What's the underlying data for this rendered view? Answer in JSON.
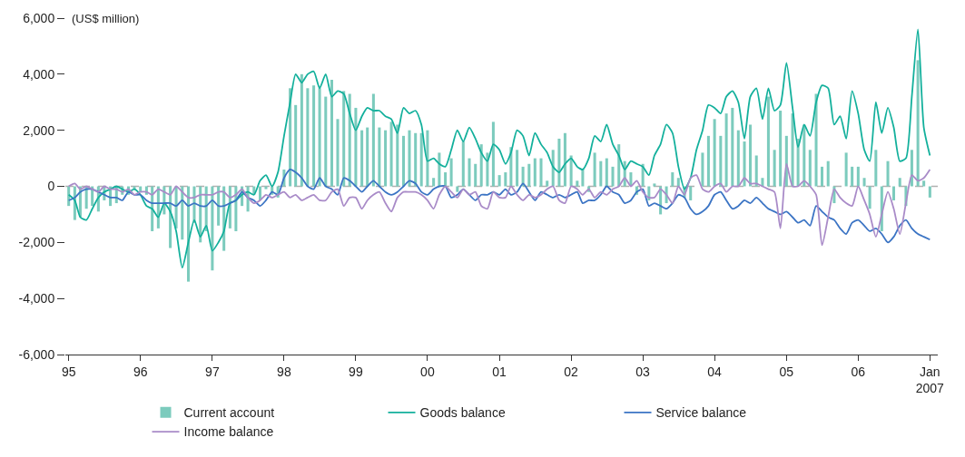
{
  "chart_data": {
    "type": "line",
    "ylabel": "(US$ million)",
    "x": [
      "1995-01",
      "1995-02",
      "1995-03",
      "1995-04",
      "1995-05",
      "1995-06",
      "1995-07",
      "1995-08",
      "1995-09",
      "1995-10",
      "1995-11",
      "1995-12",
      "1996-01",
      "1996-02",
      "1996-03",
      "1996-04",
      "1996-05",
      "1996-06",
      "1996-07",
      "1996-08",
      "1996-09",
      "1996-10",
      "1996-11",
      "1996-12",
      "1997-01",
      "1997-02",
      "1997-03",
      "1997-04",
      "1997-05",
      "1997-06",
      "1997-07",
      "1997-08",
      "1997-09",
      "1997-10",
      "1997-11",
      "1997-12",
      "1998-01",
      "1998-02",
      "1998-03",
      "1998-04",
      "1998-05",
      "1998-06",
      "1998-07",
      "1998-08",
      "1998-09",
      "1998-10",
      "1998-11",
      "1998-12",
      "1999-01",
      "1999-02",
      "1999-03",
      "1999-04",
      "1999-05",
      "1999-06",
      "1999-07",
      "1999-08",
      "1999-09",
      "1999-10",
      "1999-11",
      "1999-12",
      "2000-01",
      "2000-02",
      "2000-03",
      "2000-04",
      "2000-05",
      "2000-06",
      "2000-07",
      "2000-08",
      "2000-09",
      "2000-10",
      "2000-11",
      "2000-12",
      "2001-01",
      "2001-02",
      "2001-03",
      "2001-04",
      "2001-05",
      "2001-06",
      "2001-07",
      "2001-08",
      "2001-09",
      "2001-10",
      "2001-11",
      "2001-12",
      "2002-01",
      "2002-02",
      "2002-03",
      "2002-04",
      "2002-05",
      "2002-06",
      "2002-07",
      "2002-08",
      "2002-09",
      "2002-10",
      "2002-11",
      "2002-12",
      "2003-01",
      "2003-02",
      "2003-03",
      "2003-04",
      "2003-05",
      "2003-06",
      "2003-07",
      "2003-08",
      "2003-09",
      "2003-10",
      "2003-11",
      "2003-12",
      "2004-01",
      "2004-02",
      "2004-03",
      "2004-04",
      "2004-05",
      "2004-06",
      "2004-07",
      "2004-08",
      "2004-09",
      "2004-10",
      "2004-11",
      "2004-12",
      "2005-01",
      "2005-02",
      "2005-03",
      "2005-04",
      "2005-05",
      "2005-06",
      "2005-07",
      "2005-08",
      "2005-09",
      "2005-10",
      "2005-11",
      "2005-12",
      "2006-01",
      "2006-02",
      "2006-03",
      "2006-04",
      "2006-05",
      "2006-06",
      "2006-07",
      "2006-08",
      "2006-09",
      "2006-10",
      "2006-11",
      "2006-12",
      "2007-01"
    ],
    "xlim": [
      "1994-12-15",
      "2007-02-10"
    ],
    "xticks": [
      {
        "value": "1995-01-01",
        "label": "95"
      },
      {
        "value": "1996-01-01",
        "label": "96"
      },
      {
        "value": "1997-01-01",
        "label": "97"
      },
      {
        "value": "1998-01-01",
        "label": "98"
      },
      {
        "value": "1999-01-01",
        "label": "99"
      },
      {
        "value": "2000-01-01",
        "label": "00"
      },
      {
        "value": "2001-01-01",
        "label": "01"
      },
      {
        "value": "2002-01-01",
        "label": "02"
      },
      {
        "value": "2003-01-01",
        "label": "03"
      },
      {
        "value": "2004-01-01",
        "label": "04"
      },
      {
        "value": "2005-01-01",
        "label": "05"
      },
      {
        "value": "2006-01-01",
        "label": "06"
      },
      {
        "value": "2007-01-01",
        "label": "Jan\n2007"
      }
    ],
    "ylim": [
      -6000,
      6000
    ],
    "yticks": [
      {
        "value": -6000,
        "label": "-6,000"
      },
      {
        "value": -4000,
        "label": "-4,000"
      },
      {
        "value": -2000,
        "label": "-2,000"
      },
      0,
      {
        "value": 2000,
        "label": "2,000"
      },
      {
        "value": 4000,
        "label": "4,000"
      },
      {
        "value": 6000,
        "label": "6,000"
      }
    ],
    "ref_lines": [
      {
        "axis": "y",
        "value": 0,
        "color": "#b0b0b0",
        "line_style": "dashed"
      }
    ],
    "legend": "bottom",
    "grid": false,
    "series": [
      {
        "name": "Current account",
        "type": "bar",
        "color": "#7ccbbd",
        "values": [
          -700,
          -1200,
          -1100,
          -800,
          -700,
          -900,
          -500,
          -700,
          -600,
          -300,
          -300,
          -100,
          -200,
          -300,
          -1600,
          -1500,
          -1000,
          -2200,
          -1500,
          -1900,
          -3400,
          -1300,
          -2000,
          -1600,
          -3000,
          -1400,
          -2300,
          -1500,
          -1600,
          -700,
          -900,
          -300,
          -500,
          -100,
          -300,
          -400,
          600,
          3500,
          2900,
          4000,
          3500,
          3600,
          3500,
          3200,
          3800,
          2400,
          3400,
          3300,
          2800,
          2000,
          2100,
          3300,
          2100,
          2000,
          2300,
          2200,
          1800,
          2000,
          1900,
          1900,
          2000,
          300,
          1200,
          500,
          1000,
          -200,
          1600,
          1000,
          800,
          1500,
          1200,
          2300,
          400,
          500,
          1400,
          1300,
          700,
          800,
          1000,
          1000,
          200,
          1300,
          1700,
          1900,
          1100,
          200,
          600,
          -200,
          1200,
          900,
          1000,
          700,
          1500,
          900,
          500,
          -300,
          800,
          -500,
          100,
          -1000,
          -600,
          500,
          300,
          -400,
          -500,
          0,
          1200,
          1800,
          2400,
          1800,
          2600,
          2800,
          2000,
          1600,
          2200,
          1100,
          300,
          3200,
          1300,
          2700,
          1800,
          2600,
          1700,
          2200,
          1300,
          3300,
          700,
          900,
          -600,
          0,
          1200,
          700,
          700,
          300,
          -800,
          1300,
          -1600,
          900,
          -500,
          300,
          -700,
          1300,
          4500,
          200,
          -400
        ]
      },
      {
        "name": "Goods balance",
        "color": "#13b09c",
        "values": [
          -300,
          -500,
          -1100,
          -1200,
          -800,
          -400,
          -200,
          -100,
          0,
          -100,
          -200,
          -100,
          -300,
          -700,
          -800,
          -1100,
          -600,
          -900,
          -1600,
          -2900,
          -2000,
          -1200,
          -1800,
          -1400,
          -2300,
          -2000,
          -1600,
          -600,
          -500,
          -300,
          -200,
          -300,
          200,
          400,
          0,
          500,
          1800,
          3000,
          4000,
          3700,
          4000,
          4100,
          3500,
          4000,
          3200,
          3400,
          3300,
          2600,
          2000,
          2500,
          2800,
          2700,
          2700,
          2500,
          2400,
          1900,
          2800,
          2600,
          2700,
          2200,
          900,
          1000,
          800,
          700,
          1300,
          2000,
          1600,
          2100,
          1700,
          1200,
          900,
          1500,
          1300,
          800,
          1200,
          2000,
          1800,
          1100,
          1900,
          1500,
          1200,
          700,
          500,
          800,
          1000,
          700,
          600,
          1000,
          1800,
          1600,
          2200,
          1500,
          1100,
          600,
          900,
          800,
          700,
          400,
          1100,
          1500,
          2200,
          1900,
          700,
          -100,
          300,
          1300,
          2000,
          2900,
          2800,
          2600,
          3200,
          3400,
          3000,
          1700,
          3200,
          3500,
          2400,
          3500,
          2700,
          2900,
          4400,
          2800,
          1400,
          2200,
          1800,
          3000,
          3600,
          3500,
          2200,
          2500,
          1700,
          3400,
          2600,
          1300,
          900,
          3000,
          1900,
          2800,
          2100,
          900,
          1000,
          3200,
          5600,
          2100,
          1100
        ]
      },
      {
        "name": "Service balance",
        "color": "#3b74c4",
        "values": [
          -500,
          -400,
          -200,
          -100,
          -100,
          -200,
          -300,
          -400,
          -400,
          -500,
          -200,
          -300,
          -300,
          -500,
          -600,
          -600,
          -600,
          -600,
          -700,
          -500,
          -700,
          -600,
          -700,
          -700,
          -500,
          -700,
          -700,
          -600,
          -500,
          -200,
          -400,
          -500,
          -700,
          -500,
          -200,
          -300,
          300,
          600,
          500,
          300,
          0,
          -100,
          300,
          0,
          -100,
          -300,
          300,
          200,
          0,
          -200,
          0,
          200,
          0,
          -200,
          -300,
          -200,
          0,
          200,
          100,
          -200,
          -300,
          -100,
          0,
          0,
          -400,
          -300,
          -100,
          -300,
          -500,
          -300,
          -300,
          -200,
          -300,
          -100,
          -300,
          -200,
          100,
          -200,
          -500,
          -200,
          -300,
          -400,
          -300,
          -400,
          -300,
          -200,
          -600,
          -500,
          -500,
          -300,
          0,
          -200,
          -300,
          -600,
          -500,
          -200,
          -100,
          -700,
          -600,
          -700,
          -800,
          -600,
          -300,
          -400,
          -800,
          -1000,
          -900,
          -700,
          -300,
          -200,
          -500,
          -800,
          -700,
          -500,
          -600,
          -400,
          -600,
          -800,
          -900,
          -1000,
          -900,
          -1100,
          -1300,
          -1200,
          -1400,
          -700,
          -900,
          -1100,
          -1200,
          -1500,
          -1700,
          -1300,
          -1200,
          -1400,
          -1600,
          -1500,
          -1700,
          -2000,
          -1800,
          -1400,
          -1200,
          -1500,
          -1700,
          -1800,
          -1900
        ]
      },
      {
        "name": "Income balance",
        "color": "#a98bc8",
        "values": [
          0,
          100,
          -100,
          0,
          -100,
          -200,
          0,
          -100,
          -100,
          -200,
          -100,
          -300,
          -200,
          -200,
          -300,
          -100,
          -200,
          -300,
          0,
          -200,
          -400,
          -400,
          -300,
          -300,
          -300,
          -200,
          -200,
          -400,
          -300,
          -100,
          -400,
          -600,
          -500,
          -300,
          -400,
          -300,
          -200,
          -400,
          -300,
          -500,
          -400,
          -300,
          -500,
          -500,
          -200,
          -100,
          -700,
          -400,
          -400,
          -800,
          -500,
          -300,
          -200,
          -600,
          -900,
          -400,
          -200,
          -200,
          -200,
          -300,
          -500,
          -800,
          -300,
          0,
          -200,
          -400,
          -100,
          -300,
          -200,
          -700,
          -800,
          -200,
          -400,
          -400,
          0,
          -300,
          -500,
          -300,
          -400,
          -300,
          -100,
          0,
          -500,
          -600,
          0,
          -100,
          -300,
          -100,
          -400,
          -200,
          -300,
          -100,
          0,
          300,
          0,
          200,
          -200,
          -400,
          -400,
          -100,
          -300,
          -600,
          0,
          -300,
          300,
          400,
          -100,
          -200,
          0,
          100,
          -200,
          0,
          0,
          300,
          100,
          100,
          0,
          -100,
          -200,
          -1500,
          800,
          0,
          0,
          200,
          0,
          -300,
          -2100,
          -1100,
          -100,
          -400,
          -600,
          -700,
          0,
          -500,
          -1000,
          -1800,
          -1000,
          -200,
          -800,
          -1700,
          -600,
          400,
          200,
          300,
          600
        ]
      }
    ]
  }
}
